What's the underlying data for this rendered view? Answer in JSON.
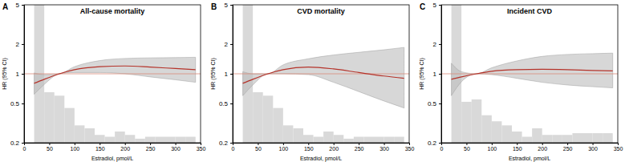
{
  "chart_data": [
    {
      "type": "line",
      "panel_label": "A",
      "title": "All-cause mortality",
      "x_label": "Estradiol, pmol/L",
      "y_label": "HR (95% CI)",
      "xlim": [
        0,
        350
      ],
      "xticks": [
        0,
        50,
        100,
        150,
        200,
        250,
        300,
        350
      ],
      "ylim": [
        0.2,
        5
      ],
      "yticks": [
        0.2,
        0.5,
        1,
        2,
        5
      ],
      "log": "y",
      "reference_line": 1,
      "histogram": {
        "color": "#d9d9d9",
        "bins": [
          20,
          40,
          60,
          80,
          100,
          120,
          140,
          160,
          180,
          200,
          220,
          240,
          260,
          280,
          300,
          320,
          340
        ],
        "counts": [
          6,
          0.65,
          0.6,
          0.45,
          0.3,
          0.28,
          0.24,
          0.23,
          0.26,
          0.24,
          0.22,
          0.23,
          0.23,
          0.23,
          0.23,
          0.23
        ]
      },
      "x": [
        20,
        40,
        70,
        100,
        150,
        200,
        250,
        300,
        340
      ],
      "series": [
        {
          "color": "#b5332a",
          "values": [
            0.8,
            0.88,
            1.0,
            1.1,
            1.18,
            1.2,
            1.17,
            1.13,
            1.1
          ],
          "lower": [
            0.62,
            0.78,
            1.0,
            1.03,
            1.03,
            1.0,
            0.93,
            0.87,
            0.82
          ],
          "upper": [
            1.02,
            0.98,
            1.0,
            1.18,
            1.36,
            1.43,
            1.45,
            1.46,
            1.47
          ]
        }
      ]
    },
    {
      "type": "line",
      "panel_label": "B",
      "title": "CVD mortality",
      "x_label": "Estradiol, pmol/L",
      "y_label": "HR (95% CI)",
      "xlim": [
        0,
        350
      ],
      "xticks": [
        0,
        50,
        100,
        150,
        200,
        250,
        300,
        350
      ],
      "ylim": [
        0.2,
        5
      ],
      "yticks": [
        0.2,
        0.5,
        1,
        2,
        5
      ],
      "log": "y",
      "reference_line": 1,
      "histogram": {
        "color": "#d9d9d9",
        "bins": [
          20,
          40,
          60,
          80,
          100,
          120,
          140,
          160,
          180,
          200,
          220,
          240,
          260,
          280,
          300,
          320,
          340
        ],
        "counts": [
          6,
          0.65,
          0.6,
          0.45,
          0.3,
          0.28,
          0.24,
          0.23,
          0.26,
          0.24,
          0.22,
          0.23,
          0.23,
          0.23,
          0.23,
          0.23
        ]
      },
      "x": [
        20,
        40,
        70,
        100,
        150,
        200,
        250,
        300,
        340
      ],
      "series": [
        {
          "color": "#b5332a",
          "values": [
            0.8,
            0.88,
            1.0,
            1.1,
            1.17,
            1.12,
            1.03,
            0.95,
            0.9
          ],
          "lower": [
            0.6,
            0.77,
            1.0,
            1.0,
            0.98,
            0.82,
            0.66,
            0.53,
            0.45
          ],
          "upper": [
            1.05,
            1.0,
            1.0,
            1.23,
            1.42,
            1.55,
            1.65,
            1.75,
            1.85
          ]
        }
      ]
    },
    {
      "type": "line",
      "panel_label": "C",
      "title": "Incident CVD",
      "x_label": "Estradiol, pmol/L",
      "y_label": "HR (95% CI)",
      "xlim": [
        0,
        350
      ],
      "xticks": [
        0,
        50,
        100,
        150,
        200,
        250,
        300,
        350
      ],
      "ylim": [
        0.2,
        5
      ],
      "yticks": [
        0.2,
        0.5,
        1,
        2,
        5
      ],
      "log": "y",
      "reference_line": 1,
      "histogram": {
        "color": "#d9d9d9",
        "bins": [
          20,
          40,
          60,
          80,
          100,
          120,
          140,
          160,
          180,
          200,
          220,
          240,
          260,
          280,
          300,
          320,
          340
        ],
        "counts": [
          6,
          0.52,
          0.55,
          0.38,
          0.33,
          0.3,
          0.26,
          0.23,
          0.28,
          0.24,
          0.24,
          0.24,
          0.25,
          0.25,
          0.25,
          0.25
        ]
      },
      "x": [
        20,
        40,
        70,
        100,
        150,
        200,
        250,
        300,
        340
      ],
      "series": [
        {
          "color": "#b5332a",
          "values": [
            0.88,
            0.93,
            1.0,
            1.06,
            1.1,
            1.11,
            1.1,
            1.08,
            1.07
          ],
          "lower": [
            0.6,
            0.83,
            1.0,
            0.98,
            0.9,
            0.82,
            0.77,
            0.74,
            0.72
          ],
          "upper": [
            1.28,
            1.05,
            1.0,
            1.15,
            1.35,
            1.5,
            1.57,
            1.6,
            1.62
          ]
        }
      ]
    }
  ]
}
